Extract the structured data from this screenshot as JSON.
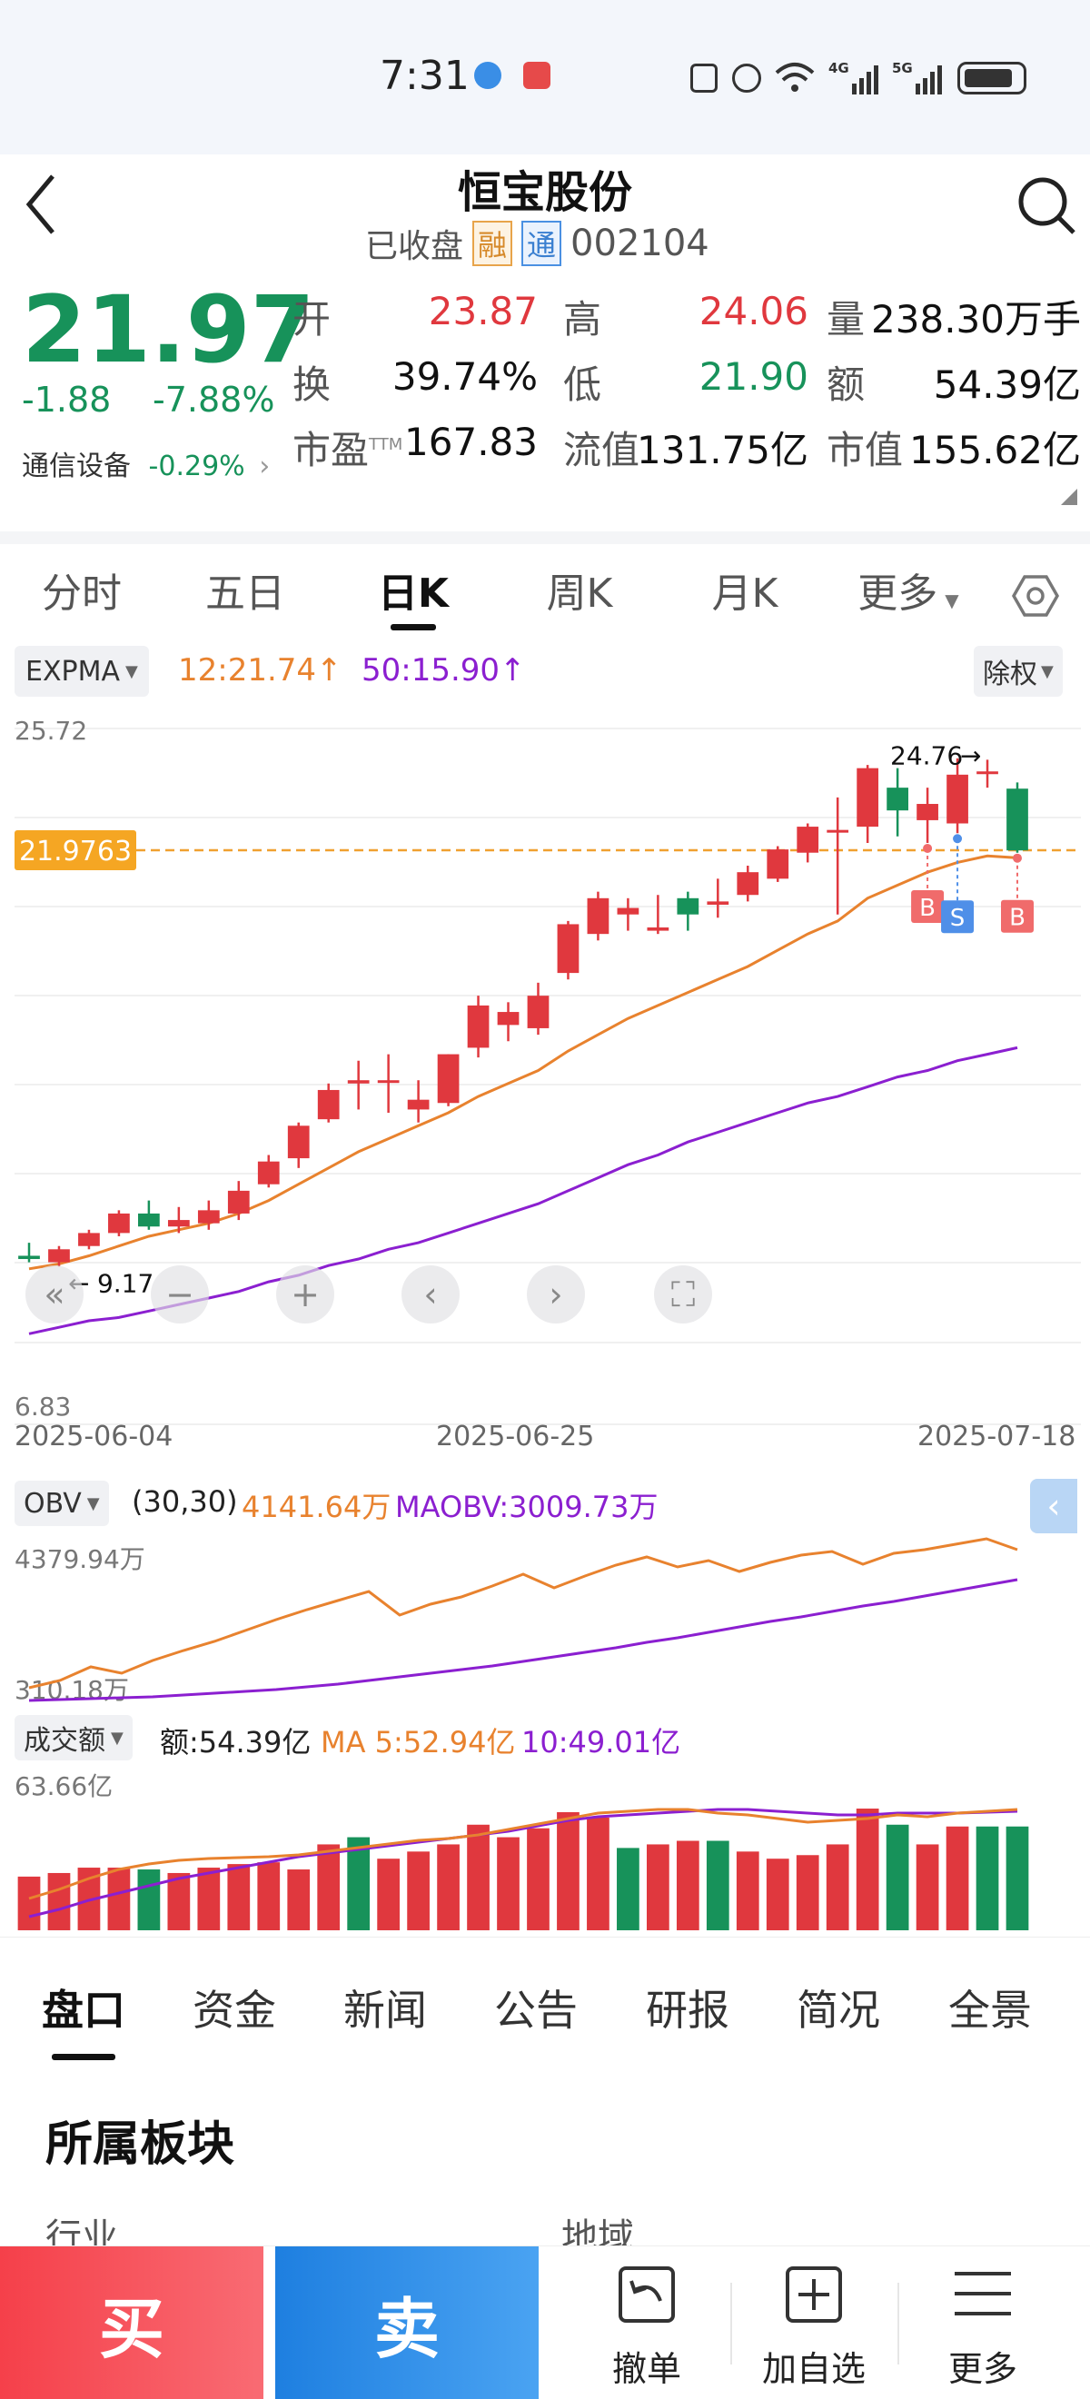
{
  "status": {
    "time": "7:31",
    "network": "4G 5G"
  },
  "header": {
    "title": "恒宝股份",
    "status_text": "已收盘",
    "badge1": "融",
    "badge2": "通",
    "code": "002104"
  },
  "quote": {
    "price": "21.97",
    "change": "-1.88",
    "change_pct": "-7.88%",
    "sector": "通信设备",
    "sector_change": "-0.29%",
    "rows": [
      [
        {
          "k": "开",
          "v": "23.87",
          "c": "red"
        },
        {
          "k": "高",
          "v": "24.06",
          "c": "red"
        },
        {
          "k": "量",
          "v": "238.30万手",
          "c": "dark"
        }
      ],
      [
        {
          "k": "换",
          "v": "39.74%",
          "c": "dark"
        },
        {
          "k": "低",
          "v": "21.90",
          "c": "green"
        },
        {
          "k": "额",
          "v": "54.39亿",
          "c": "dark"
        }
      ],
      [
        {
          "k": "市盈",
          "sup": "TTM",
          "v": "167.83",
          "c": "dark"
        },
        {
          "k": "流值",
          "v": "131.75亿",
          "c": "dark"
        },
        {
          "k": "市值",
          "v": "155.62亿",
          "c": "dark"
        }
      ]
    ]
  },
  "period_tabs": [
    "分时",
    "五日",
    "日K",
    "周K",
    "月K",
    "更多"
  ],
  "active_period": "日K",
  "indicator": {
    "name": "EXPMA",
    "ma12": "12:21.74",
    "ma50": "50:15.90",
    "adjust": "除权"
  },
  "price_chart": {
    "top_label": "25.72",
    "bottom_label": "6.83",
    "current_line": "21.9763",
    "high_note": "24.76",
    "low_note": "9.17",
    "dates": [
      "2025-06-04",
      "2025-06-25",
      "2025-07-18"
    ]
  },
  "obv": {
    "name": "OBV",
    "params": "(30,30)",
    "value": "4141.64万",
    "ma": "MAOBV:3009.73万",
    "top": "4379.94万",
    "bottom": "310.18万"
  },
  "volume": {
    "name": "成交额",
    "amount": "额:54.39亿",
    "ma5": "MA 5:52.94亿",
    "ma10": "10:49.01亿",
    "top": "63.66亿"
  },
  "bottom_tabs": [
    "盘口",
    "资金",
    "新闻",
    "公告",
    "研报",
    "简况",
    "全景"
  ],
  "section": {
    "title": "所属板块",
    "col1": "行业",
    "col2": "地域"
  },
  "actions": {
    "buy": "买",
    "sell": "卖",
    "cancel": "撤单",
    "watch": "加自选",
    "more": "更多"
  },
  "markers": {
    "b": "B",
    "s": "S"
  },
  "colors": {
    "up": "#e0383e",
    "down": "#17925a",
    "orange": "#e8822e",
    "purple": "#8b1fd0"
  },
  "chart_data": {
    "type": "candlestick",
    "candles": [
      [
        9.5,
        9.9,
        9.3,
        9.4
      ],
      [
        9.3,
        9.8,
        9.17,
        9.7
      ],
      [
        9.8,
        10.3,
        9.7,
        10.2
      ],
      [
        10.2,
        10.9,
        10.1,
        10.8
      ],
      [
        10.8,
        11.2,
        10.3,
        10.4
      ],
      [
        10.4,
        11.0,
        10.2,
        10.6
      ],
      [
        10.5,
        11.2,
        10.3,
        10.9
      ],
      [
        10.8,
        11.8,
        10.6,
        11.5
      ],
      [
        11.7,
        12.6,
        11.6,
        12.4
      ],
      [
        12.5,
        13.6,
        12.2,
        13.5
      ],
      [
        13.7,
        14.8,
        13.6,
        14.6
      ],
      [
        14.8,
        15.5,
        14.0,
        14.9
      ],
      [
        14.9,
        15.7,
        13.9,
        14.9
      ],
      [
        14.0,
        14.9,
        13.6,
        14.3
      ],
      [
        14.2,
        15.7,
        14.1,
        15.7
      ],
      [
        15.9,
        17.5,
        15.6,
        17.2
      ],
      [
        16.6,
        17.3,
        16.1,
        17.0
      ],
      [
        16.5,
        17.9,
        16.3,
        17.5
      ],
      [
        18.2,
        19.8,
        18.0,
        19.7
      ],
      [
        19.4,
        20.7,
        19.2,
        20.5
      ],
      [
        20.0,
        20.5,
        19.5,
        20.2
      ],
      [
        19.5,
        20.6,
        19.4,
        19.6
      ],
      [
        20.5,
        20.7,
        19.5,
        20.0
      ],
      [
        20.3,
        21.1,
        19.9,
        20.4
      ],
      [
        20.6,
        21.5,
        20.4,
        21.3
      ],
      [
        21.1,
        22.1,
        21.0,
        22.0
      ],
      [
        21.9,
        22.8,
        21.6,
        22.7
      ],
      [
        22.6,
        23.6,
        20.0,
        22.6
      ],
      [
        22.7,
        24.6,
        22.2,
        24.5
      ],
      [
        23.9,
        24.5,
        22.4,
        23.2
      ],
      [
        22.9,
        23.9,
        22.2,
        23.4
      ],
      [
        22.8,
        24.8,
        22.5,
        24.3
      ],
      [
        24.4,
        24.76,
        23.9,
        24.4
      ],
      [
        23.87,
        24.06,
        21.9,
        21.97
      ]
    ],
    "ema12": [
      9.1,
      9.25,
      9.5,
      9.8,
      10.1,
      10.3,
      10.5,
      10.8,
      11.2,
      11.7,
      12.2,
      12.7,
      13.1,
      13.5,
      13.9,
      14.4,
      14.8,
      15.2,
      15.8,
      16.3,
      16.8,
      17.2,
      17.6,
      18.0,
      18.4,
      18.9,
      19.4,
      19.8,
      20.5,
      20.9,
      21.3,
      21.6,
      21.8,
      21.74
    ],
    "ema50": [
      7.1,
      7.3,
      7.5,
      7.6,
      7.8,
      8.0,
      8.2,
      8.4,
      8.7,
      8.9,
      9.2,
      9.4,
      9.7,
      9.9,
      10.2,
      10.5,
      10.8,
      11.1,
      11.5,
      11.9,
      12.3,
      12.6,
      13.0,
      13.3,
      13.6,
      13.9,
      14.2,
      14.4,
      14.7,
      15.0,
      15.2,
      15.5,
      15.7,
      15.9
    ],
    "ylim": [
      6.83,
      25.72
    ]
  }
}
